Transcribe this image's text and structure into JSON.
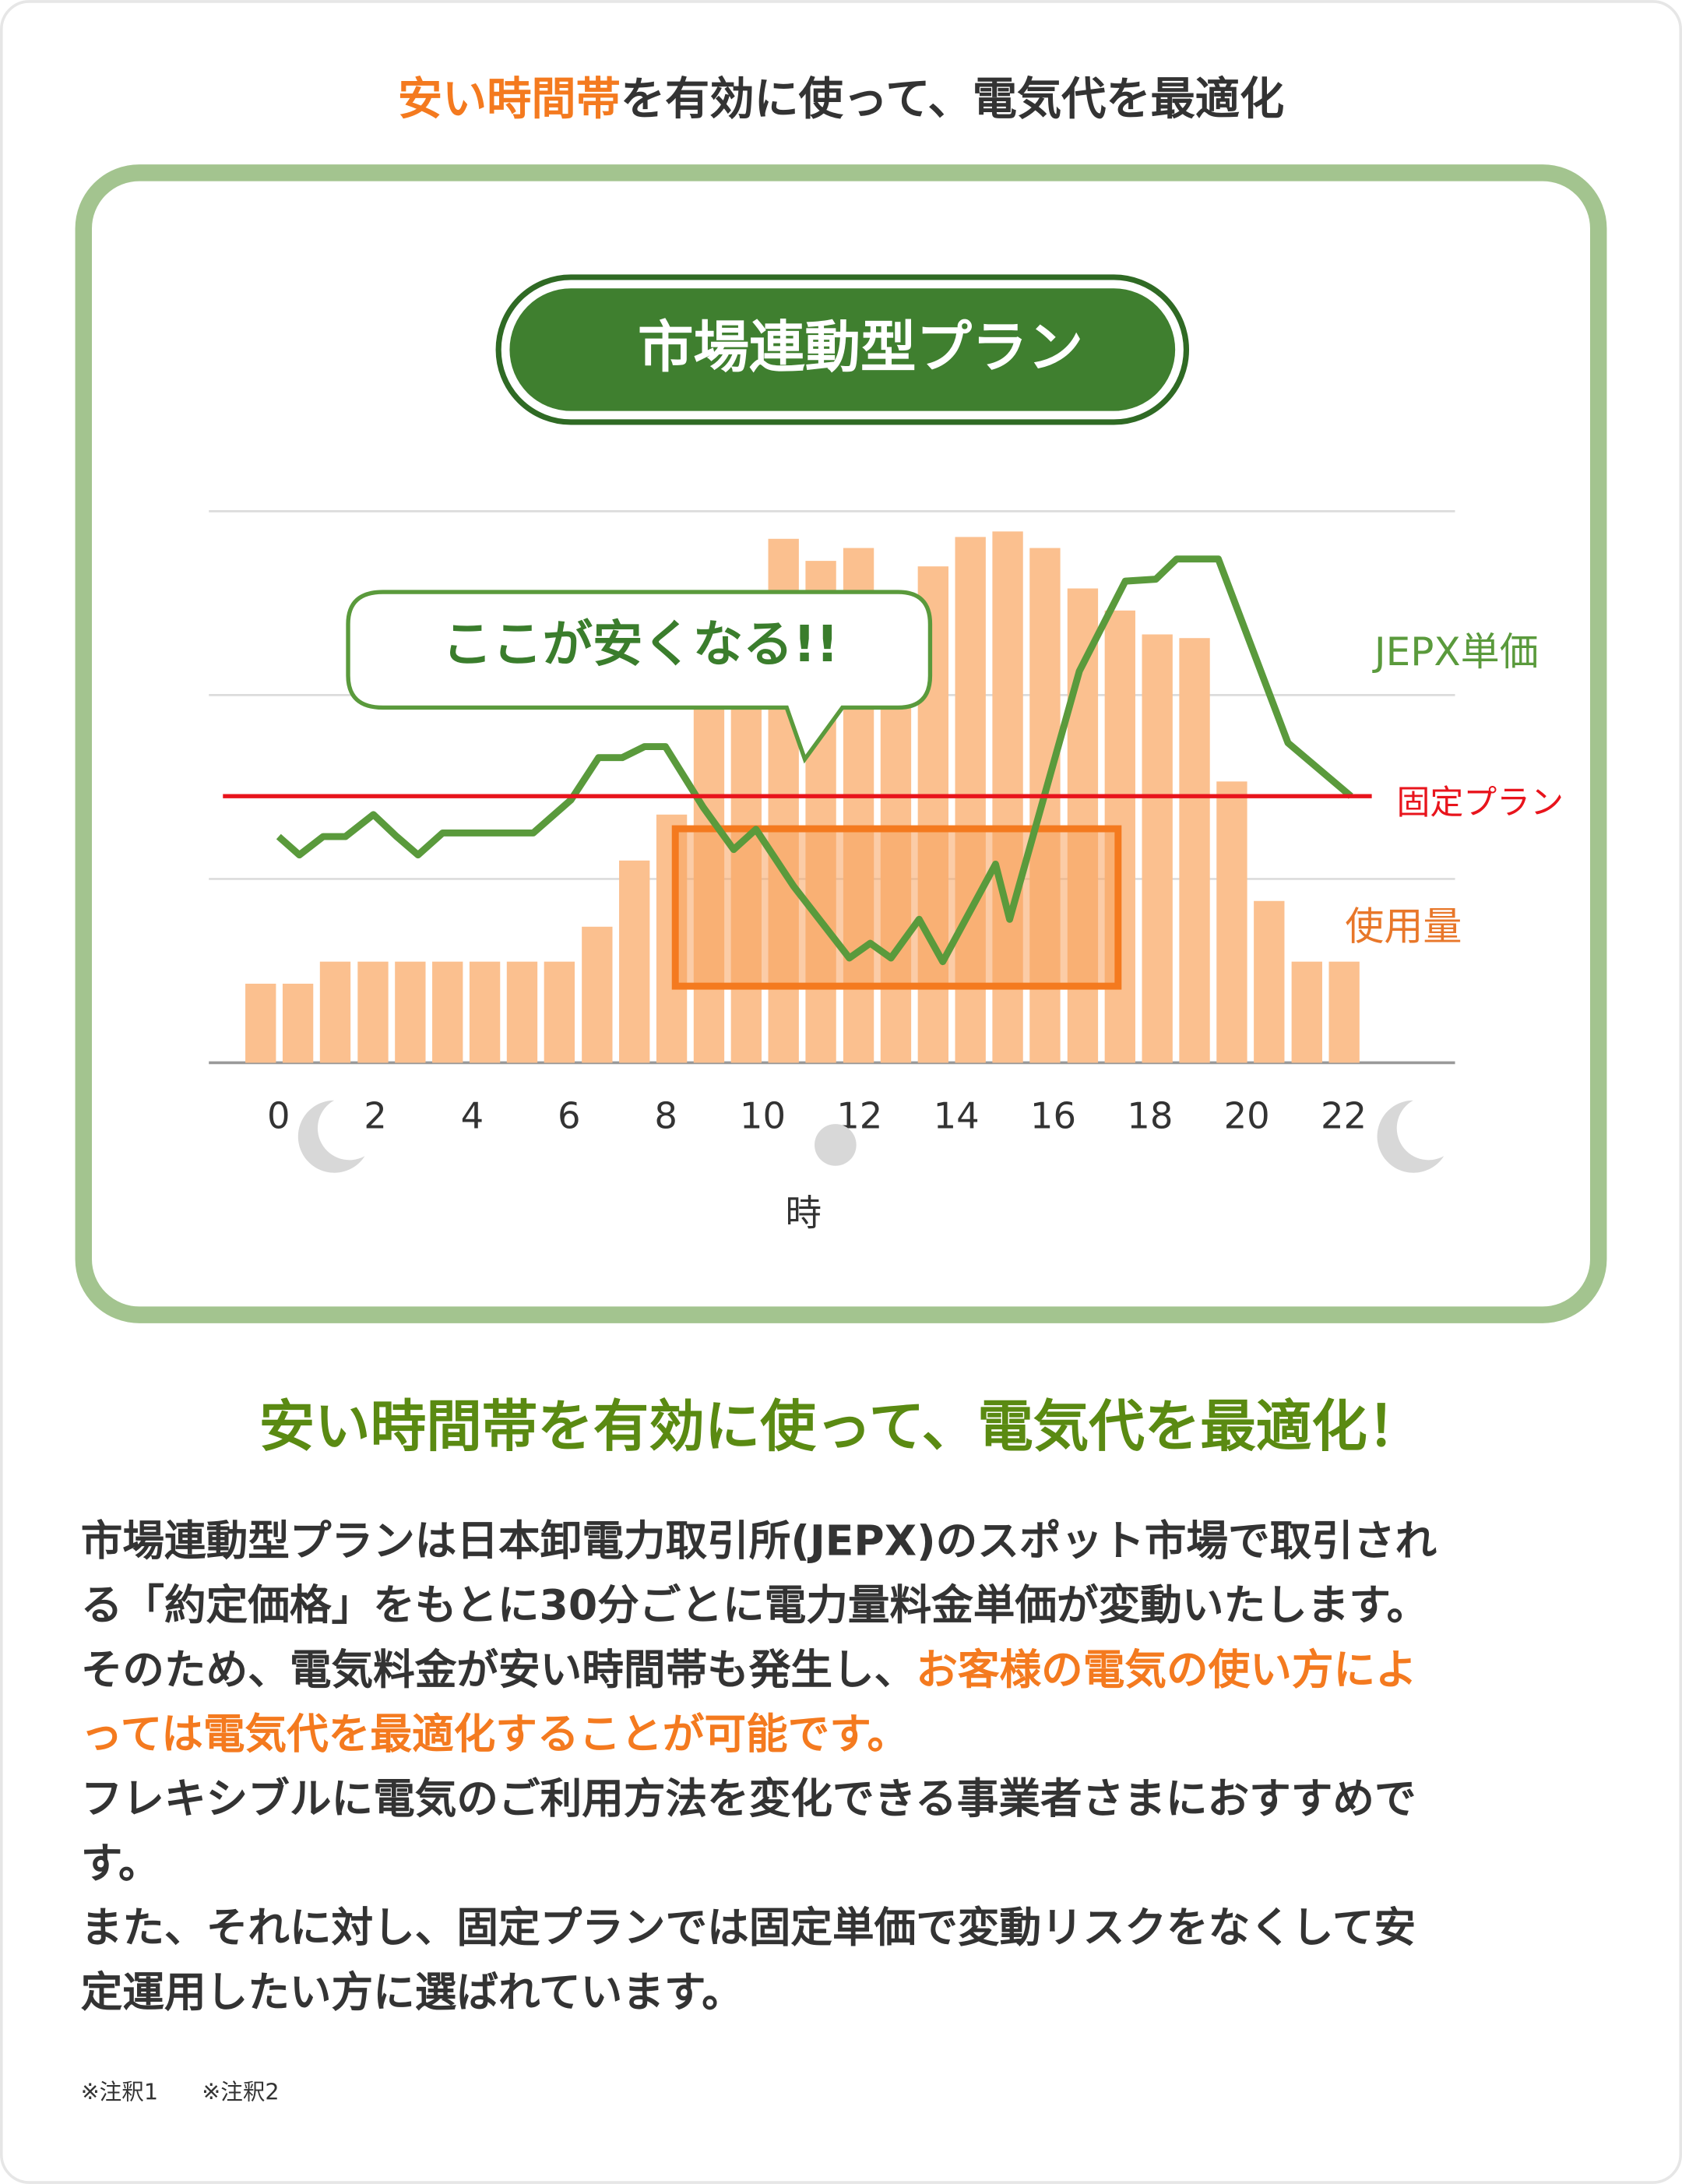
{
  "header": {
    "segments": [
      {
        "text": "安い時間帯",
        "emphasis": true
      },
      {
        "text": "を有効に使って、電気代を最適化"
      }
    ]
  },
  "chart_data": {
    "type": "combo",
    "title": "市場連動型プラン",
    "annotation": "ここが安くなる!!",
    "x_label": "時",
    "xlim": [
      -1.44,
      24.3
    ],
    "ylim": [
      0,
      3
    ],
    "xticks": [
      0,
      2,
      4,
      6,
      8,
      10,
      12,
      14,
      16,
      18,
      20,
      22
    ],
    "yticks": [
      1,
      2,
      3
    ],
    "grid": true,
    "series": [
      {
        "name": "使用量",
        "type": "bar",
        "color": "#fbc08f",
        "label_color": "#e8772a",
        "x": [
          -0.37,
          0.4,
          1.17,
          1.95,
          2.72,
          3.49,
          4.26,
          5.03,
          5.8,
          6.58,
          7.35,
          8.12,
          8.89,
          9.66,
          10.43,
          11.2,
          11.98,
          12.75,
          13.52,
          14.29,
          15.06,
          15.83,
          16.61,
          17.38,
          18.15,
          18.92,
          19.69,
          20.46,
          21.24,
          22.01
        ],
        "values": [
          0.43,
          0.43,
          0.55,
          0.55,
          0.55,
          0.55,
          0.55,
          0.55,
          0.55,
          0.74,
          1.1,
          1.35,
          2.05,
          2.37,
          2.85,
          2.73,
          2.8,
          2.4,
          2.7,
          2.86,
          2.89,
          2.8,
          2.58,
          2.46,
          2.33,
          2.31,
          1.53,
          0.88,
          0.55,
          0.55
        ]
      },
      {
        "name": "JEPX単価",
        "type": "line",
        "color": "#5a9a3c",
        "label_color": "#5a9a3c",
        "x": [
          0,
          0.43,
          0.92,
          1.38,
          1.96,
          2.44,
          2.88,
          3.39,
          5.26,
          6.04,
          6.61,
          7.1,
          7.56,
          7.99,
          8.77,
          9.4,
          9.86,
          10.64,
          11.79,
          12.22,
          12.65,
          13.23,
          13.72,
          14.81,
          15.1,
          16.54,
          17.49,
          18.12,
          18.55,
          19.41,
          20.85,
          22.15
        ],
        "values": [
          1.23,
          1.13,
          1.23,
          1.23,
          1.35,
          1.23,
          1.13,
          1.25,
          1.25,
          1.43,
          1.66,
          1.66,
          1.72,
          1.72,
          1.39,
          1.16,
          1.27,
          0.96,
          0.57,
          0.65,
          0.57,
          0.78,
          0.55,
          1.08,
          0.78,
          2.13,
          2.62,
          2.63,
          2.74,
          2.74,
          1.74,
          1.45
        ]
      },
      {
        "name": "固定プラン",
        "type": "line",
        "color": "#e8141c",
        "label_color": "#e8141c",
        "x": [
          -1.15,
          22.58
        ],
        "values": [
          1.45,
          1.45
        ]
      }
    ]
  },
  "heading": "安い時間帯を有効に使って、電気代を最適化！",
  "body": [
    [
      {
        "text": "市場連動型プランは日本卸電力取引所(JEPX)のスポット市場で取引され"
      }
    ],
    [
      {
        "text": "る「約定価格」をもとに30分ごとに電力量料金単価が変動いたします。"
      }
    ],
    [
      {
        "text": "そのため、電気料金が安い時間帯も発生し、"
      },
      {
        "text": "お客様の電気の使い方によ",
        "emphasis": true
      }
    ],
    [
      {
        "text": "っては電気代を最適化することが可能です。",
        "emphasis": true
      }
    ],
    [
      {
        "text": "フレキシブルに電気のご利用方法を変化できる事業者さまにおすすめで"
      }
    ],
    [
      {
        "text": "す。"
      }
    ],
    [
      {
        "text": "また、それに対し、固定プランでは固定単価で変動リスクをなくして安"
      }
    ],
    [
      {
        "text": "定運用したい方に選ばれています。"
      }
    ]
  ],
  "notes": [
    "※注釈1",
    "※注釈2"
  ]
}
